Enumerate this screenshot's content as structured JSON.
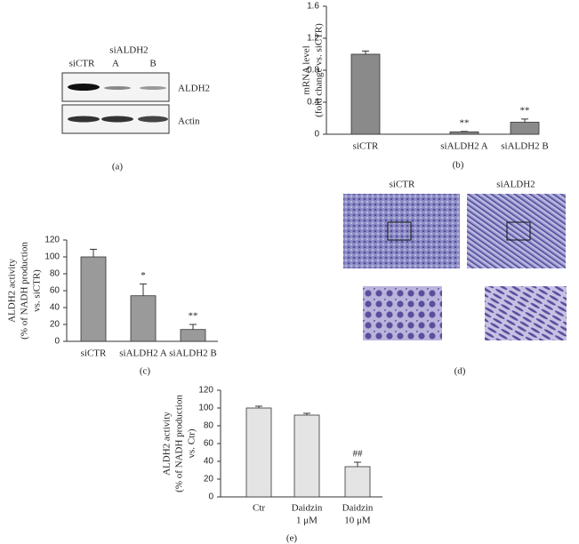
{
  "panel_a": {
    "group": "siALDH2",
    "lanes": [
      "siCTR",
      "A",
      "B"
    ],
    "bands": [
      "ALDH2",
      "Actin"
    ],
    "label": "(a)"
  },
  "panel_d": {
    "conditions": [
      "siCTR",
      "siALDH2"
    ],
    "label": "(d)"
  },
  "chart_data": [
    {
      "type": "bar",
      "label": "(b)",
      "ylabel": [
        "mRNA level",
        "(fold change vs. siCTR)"
      ],
      "categories": [
        "siCTR",
        "siALDH2 A",
        "siALDH2 B"
      ],
      "values": [
        1.0,
        0.03,
        0.15
      ],
      "errors": [
        0.04,
        0.005,
        0.04
      ],
      "significance": [
        null,
        "**",
        "**"
      ],
      "color": "#8a8a8a",
      "ylim": [
        0,
        1.6
      ],
      "yticks": [
        0,
        0.4,
        0.8,
        1.2,
        1.6
      ]
    },
    {
      "type": "bar",
      "label": "(c)",
      "ylabel": [
        "ALDH2 activity",
        "(% of NADH production",
        "vs. siCTR)"
      ],
      "categories": [
        "siCTR",
        "siALDH2 A",
        "siALDH2 B"
      ],
      "values": [
        100,
        54,
        14
      ],
      "errors": [
        9,
        14,
        6
      ],
      "significance": [
        null,
        "*",
        "**"
      ],
      "color": "#9a9a9a",
      "ylim": [
        0,
        120
      ],
      "yticks": [
        0,
        20,
        40,
        60,
        80,
        100,
        120
      ]
    },
    {
      "type": "bar",
      "label": "(e)",
      "ylabel": [
        "ALDH2 activity",
        "(% of NADH production",
        "vs. Ctr)"
      ],
      "categories": [
        [
          "Ctr"
        ],
        [
          "Daidzin",
          "1 μM"
        ],
        [
          "Daidzin",
          "10 μM"
        ]
      ],
      "values": [
        100,
        92,
        34
      ],
      "errors": [
        2,
        2,
        5
      ],
      "significance": [
        null,
        null,
        "##"
      ],
      "color": "#e4e4e4",
      "ylim": [
        0,
        120
      ],
      "yticks": [
        0,
        20,
        40,
        60,
        80,
        100,
        120
      ]
    }
  ]
}
